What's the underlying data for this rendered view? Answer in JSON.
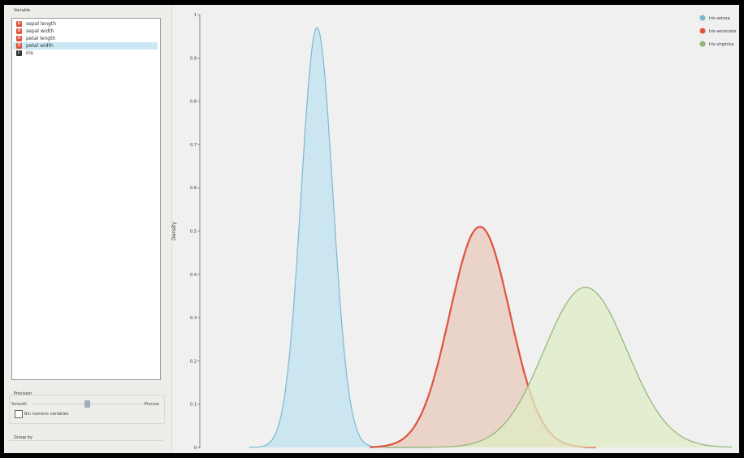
{
  "variable_panel": {
    "title": "Variable",
    "items": [
      {
        "label": "sepal length",
        "type": "numeric",
        "icon": "numeric-icon",
        "selected": false
      },
      {
        "label": "sepal width",
        "type": "numeric",
        "icon": "numeric-icon",
        "selected": false
      },
      {
        "label": "petal length",
        "type": "numeric",
        "icon": "numeric-icon",
        "selected": false
      },
      {
        "label": "petal width",
        "type": "numeric",
        "icon": "numeric-icon",
        "selected": true
      },
      {
        "label": "iris",
        "type": "categorical",
        "icon": "categorical-icon",
        "selected": false
      }
    ]
  },
  "precision": {
    "title": "Precision",
    "left_label": "Smooth",
    "right_label": "Precise",
    "slider_value": 0.62,
    "bin_checkbox_label": "Bin numeric variables",
    "bin_checked": false
  },
  "group_by": {
    "title": "Group by"
  },
  "colors": {
    "setosa": "#7bb8d0",
    "versicolor": "#e0533e",
    "virginica": "#8fb476"
  },
  "chart_data": {
    "type": "area",
    "title": "",
    "xlabel": "",
    "ylabel": "Density",
    "ylim": [
      0,
      1.0
    ],
    "xlim": [
      -0.5,
      3.0
    ],
    "y_ticks": [
      "0",
      "0.1",
      "0.2",
      "0.3",
      "0.4",
      "0.5",
      "0.6",
      "0.7",
      "0.8",
      "0.9",
      "1"
    ],
    "legend_position": "top-right",
    "series": [
      {
        "name": "Iris-setosa",
        "mean": 0.25,
        "sd": 0.105,
        "peak": 0.97,
        "range": [
          -0.2,
          1.0
        ],
        "fill": "#bfe3f1",
        "stroke": "#7bb8d0"
      },
      {
        "name": "Iris-versicolor",
        "mean": 1.33,
        "sd": 0.2,
        "peak": 0.51,
        "range": [
          0.6,
          2.1
        ],
        "fill": "#e8c9bb",
        "stroke": "#e0533e"
      },
      {
        "name": "Iris-virginica",
        "mean": 2.03,
        "sd": 0.275,
        "peak": 0.37,
        "range": [
          0.7,
          3.0
        ],
        "fill": "#dfecc4",
        "stroke": "#8fb476"
      }
    ]
  }
}
